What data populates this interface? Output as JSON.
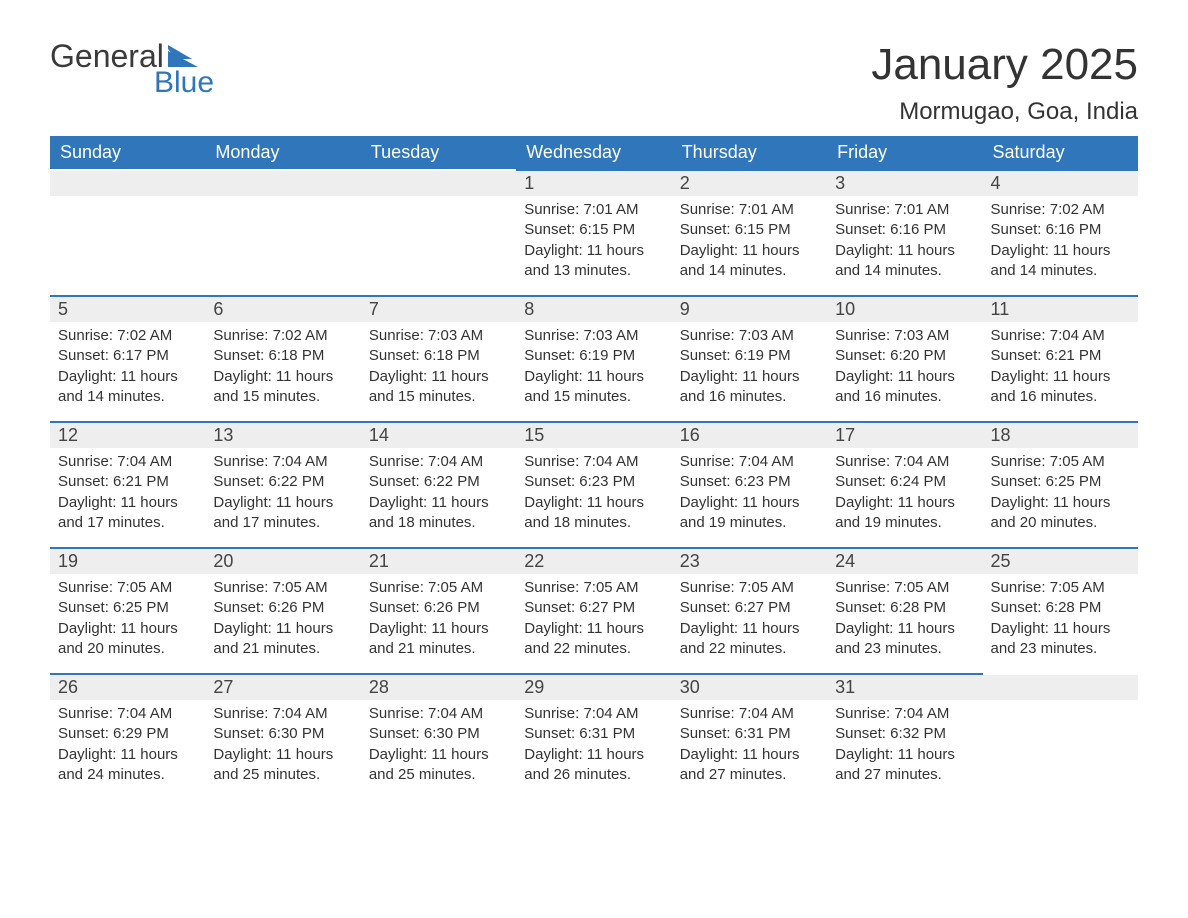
{
  "brand": {
    "line1": "General",
    "line2": "Blue",
    "accent_color": "#2f76bb",
    "text_color": "#3a3a3a"
  },
  "title": "January 2025",
  "location": "Mormugao, Goa, India",
  "colors": {
    "header_bg": "#2f76bb",
    "header_text": "#ffffff",
    "daynum_bg": "#eeeeee",
    "daynum_border": "#2f76bb",
    "body_bg": "#ffffff",
    "text": "#333333"
  },
  "day_headers": [
    "Sunday",
    "Monday",
    "Tuesday",
    "Wednesday",
    "Thursday",
    "Friday",
    "Saturday"
  ],
  "weeks": [
    [
      null,
      null,
      null,
      {
        "n": "1",
        "sunrise": "7:01 AM",
        "sunset": "6:15 PM",
        "daylight": "11 hours and 13 minutes."
      },
      {
        "n": "2",
        "sunrise": "7:01 AM",
        "sunset": "6:15 PM",
        "daylight": "11 hours and 14 minutes."
      },
      {
        "n": "3",
        "sunrise": "7:01 AM",
        "sunset": "6:16 PM",
        "daylight": "11 hours and 14 minutes."
      },
      {
        "n": "4",
        "sunrise": "7:02 AM",
        "sunset": "6:16 PM",
        "daylight": "11 hours and 14 minutes."
      }
    ],
    [
      {
        "n": "5",
        "sunrise": "7:02 AM",
        "sunset": "6:17 PM",
        "daylight": "11 hours and 14 minutes."
      },
      {
        "n": "6",
        "sunrise": "7:02 AM",
        "sunset": "6:18 PM",
        "daylight": "11 hours and 15 minutes."
      },
      {
        "n": "7",
        "sunrise": "7:03 AM",
        "sunset": "6:18 PM",
        "daylight": "11 hours and 15 minutes."
      },
      {
        "n": "8",
        "sunrise": "7:03 AM",
        "sunset": "6:19 PM",
        "daylight": "11 hours and 15 minutes."
      },
      {
        "n": "9",
        "sunrise": "7:03 AM",
        "sunset": "6:19 PM",
        "daylight": "11 hours and 16 minutes."
      },
      {
        "n": "10",
        "sunrise": "7:03 AM",
        "sunset": "6:20 PM",
        "daylight": "11 hours and 16 minutes."
      },
      {
        "n": "11",
        "sunrise": "7:04 AM",
        "sunset": "6:21 PM",
        "daylight": "11 hours and 16 minutes."
      }
    ],
    [
      {
        "n": "12",
        "sunrise": "7:04 AM",
        "sunset": "6:21 PM",
        "daylight": "11 hours and 17 minutes."
      },
      {
        "n": "13",
        "sunrise": "7:04 AM",
        "sunset": "6:22 PM",
        "daylight": "11 hours and 17 minutes."
      },
      {
        "n": "14",
        "sunrise": "7:04 AM",
        "sunset": "6:22 PM",
        "daylight": "11 hours and 18 minutes."
      },
      {
        "n": "15",
        "sunrise": "7:04 AM",
        "sunset": "6:23 PM",
        "daylight": "11 hours and 18 minutes."
      },
      {
        "n": "16",
        "sunrise": "7:04 AM",
        "sunset": "6:23 PM",
        "daylight": "11 hours and 19 minutes."
      },
      {
        "n": "17",
        "sunrise": "7:04 AM",
        "sunset": "6:24 PM",
        "daylight": "11 hours and 19 minutes."
      },
      {
        "n": "18",
        "sunrise": "7:05 AM",
        "sunset": "6:25 PM",
        "daylight": "11 hours and 20 minutes."
      }
    ],
    [
      {
        "n": "19",
        "sunrise": "7:05 AM",
        "sunset": "6:25 PM",
        "daylight": "11 hours and 20 minutes."
      },
      {
        "n": "20",
        "sunrise": "7:05 AM",
        "sunset": "6:26 PM",
        "daylight": "11 hours and 21 minutes."
      },
      {
        "n": "21",
        "sunrise": "7:05 AM",
        "sunset": "6:26 PM",
        "daylight": "11 hours and 21 minutes."
      },
      {
        "n": "22",
        "sunrise": "7:05 AM",
        "sunset": "6:27 PM",
        "daylight": "11 hours and 22 minutes."
      },
      {
        "n": "23",
        "sunrise": "7:05 AM",
        "sunset": "6:27 PM",
        "daylight": "11 hours and 22 minutes."
      },
      {
        "n": "24",
        "sunrise": "7:05 AM",
        "sunset": "6:28 PM",
        "daylight": "11 hours and 23 minutes."
      },
      {
        "n": "25",
        "sunrise": "7:05 AM",
        "sunset": "6:28 PM",
        "daylight": "11 hours and 23 minutes."
      }
    ],
    [
      {
        "n": "26",
        "sunrise": "7:04 AM",
        "sunset": "6:29 PM",
        "daylight": "11 hours and 24 minutes."
      },
      {
        "n": "27",
        "sunrise": "7:04 AM",
        "sunset": "6:30 PM",
        "daylight": "11 hours and 25 minutes."
      },
      {
        "n": "28",
        "sunrise": "7:04 AM",
        "sunset": "6:30 PM",
        "daylight": "11 hours and 25 minutes."
      },
      {
        "n": "29",
        "sunrise": "7:04 AM",
        "sunset": "6:31 PM",
        "daylight": "11 hours and 26 minutes."
      },
      {
        "n": "30",
        "sunrise": "7:04 AM",
        "sunset": "6:31 PM",
        "daylight": "11 hours and 27 minutes."
      },
      {
        "n": "31",
        "sunrise": "7:04 AM",
        "sunset": "6:32 PM",
        "daylight": "11 hours and 27 minutes."
      },
      null
    ]
  ],
  "labels": {
    "sunrise": "Sunrise: ",
    "sunset": "Sunset: ",
    "daylight": "Daylight: "
  }
}
